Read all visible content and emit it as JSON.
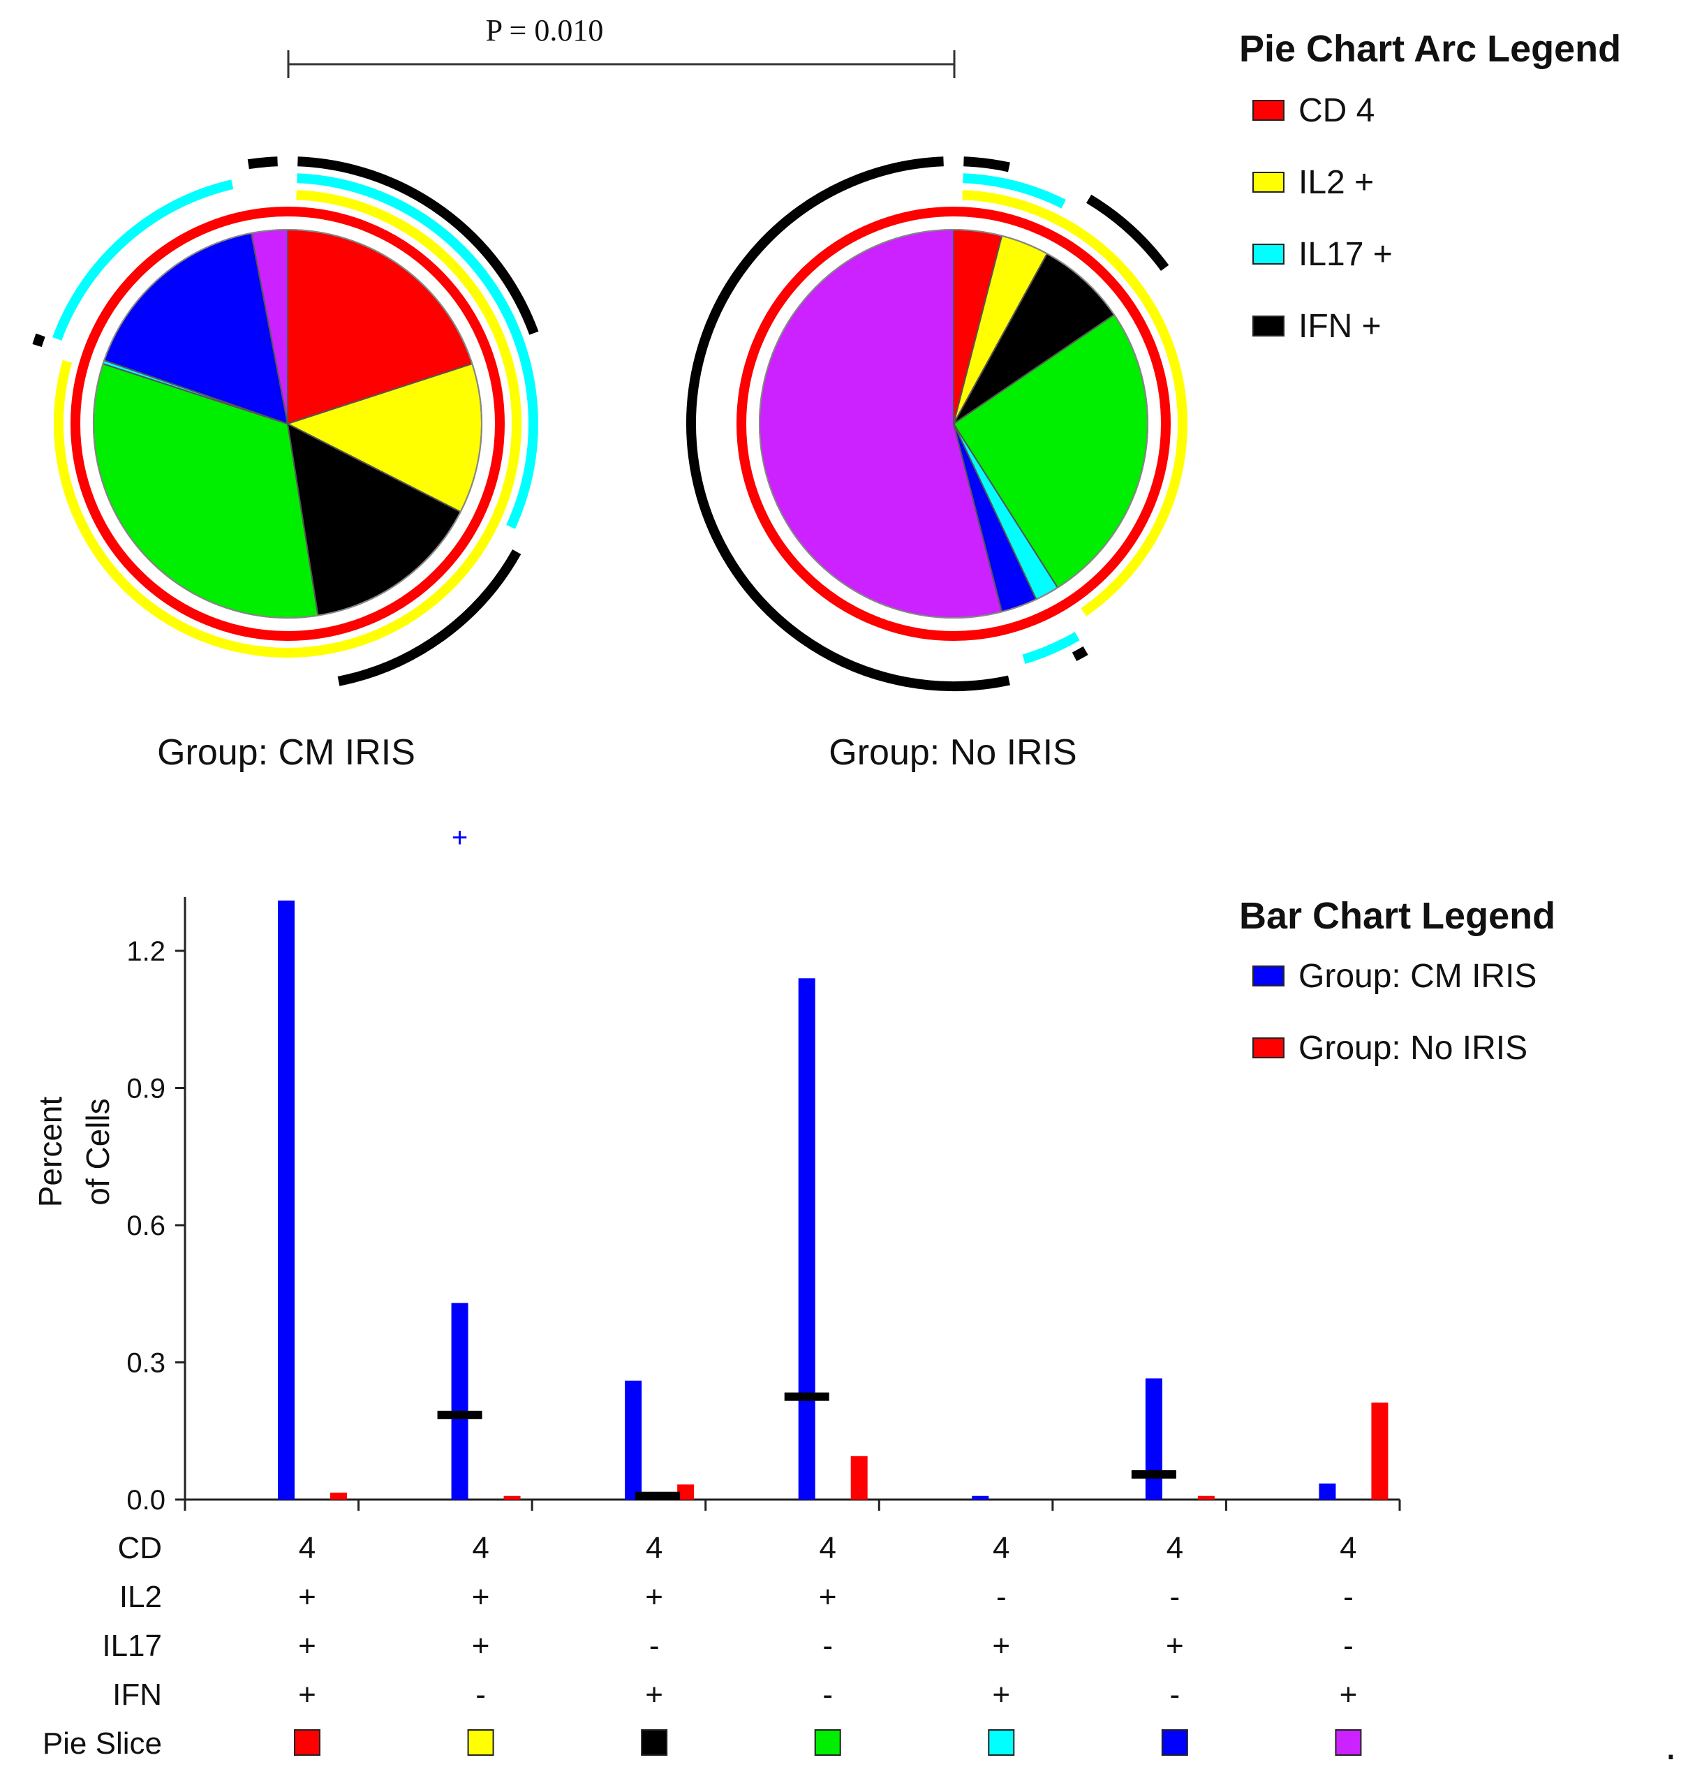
{
  "chart_data": [
    {
      "type": "pie",
      "id": "pie-cm-iris",
      "label": "Group: CM IRIS",
      "slices": [
        {
          "pattern_index": 0,
          "color": "#ff0000",
          "value": 20.0
        },
        {
          "pattern_index": 1,
          "color": "#ffff00",
          "value": 12.5
        },
        {
          "pattern_index": 2,
          "color": "#000000",
          "value": 15.0
        },
        {
          "pattern_index": 3,
          "color": "#00ee00",
          "value": 32.5
        },
        {
          "pattern_index": 4,
          "color": "#00ffff",
          "value": 0.3
        },
        {
          "pattern_index": 5,
          "color": "#0000ff",
          "value": 16.7
        },
        {
          "pattern_index": 6,
          "color": "#cc22ff",
          "value": 3.0
        }
      ]
    },
    {
      "type": "pie",
      "id": "pie-no-iris",
      "label": "Group: No IRIS",
      "slices": [
        {
          "pattern_index": 0,
          "color": "#ff0000",
          "value": 4.0
        },
        {
          "pattern_index": 1,
          "color": "#ffff00",
          "value": 4.0
        },
        {
          "pattern_index": 2,
          "color": "#000000",
          "value": 7.5
        },
        {
          "pattern_index": 3,
          "color": "#00ee00",
          "value": 25.5
        },
        {
          "pattern_index": 4,
          "color": "#00ffff",
          "value": 2.0
        },
        {
          "pattern_index": 5,
          "color": "#0000ff",
          "value": 3.0
        },
        {
          "pattern_index": 6,
          "color": "#cc22ff",
          "value": 54.0
        }
      ]
    },
    {
      "type": "bar",
      "id": "bar-percent-cells",
      "ylabel": [
        "Percent",
        "of Cells"
      ],
      "ylim": [
        0,
        1.3
      ],
      "yticks": [
        "0.0",
        "0.3",
        "0.6",
        "0.9",
        "1.2"
      ],
      "ytick_values": [
        0,
        0.3,
        0.6,
        0.9,
        1.2
      ],
      "series": [
        {
          "name": "Group: CM IRIS",
          "color": "#0000ff",
          "values": [
            1.31,
            0.43,
            0.26,
            1.14,
            0.008,
            0.265,
            0.035
          ]
        },
        {
          "name": "Group: No IRIS",
          "color": "#ff0000",
          "values": [
            0.015,
            0.008,
            0.033,
            0.095,
            0.0,
            0.008,
            0.212
          ]
        }
      ],
      "medians": [
        null,
        0.185,
        0.008,
        0.225,
        null,
        0.055,
        null
      ],
      "outliers": [
        {
          "category_index": 1,
          "series": "Group: CM IRIS",
          "symbol": "+"
        }
      ]
    }
  ],
  "pvalue": {
    "text": "P = 0.010"
  },
  "pie_arc_legend": {
    "title": "Pie Chart Arc Legend",
    "items": [
      {
        "label": "CD 4",
        "color": "#ff0000"
      },
      {
        "label": "IL2 +",
        "color": "#ffff00"
      },
      {
        "label": "IL17 +",
        "color": "#00ffff"
      },
      {
        "label": "IFN +",
        "color": "#000000"
      }
    ]
  },
  "bar_legend": {
    "title": "Bar Chart Legend",
    "items": [
      {
        "label": "Group: CM IRIS",
        "color": "#0000ff"
      },
      {
        "label": "Group: No IRIS",
        "color": "#ff0000"
      }
    ]
  },
  "category_table": {
    "row_labels": [
      "CD",
      "IL2",
      "IL17",
      "IFN",
      "Pie Slice"
    ],
    "rows": [
      [
        "4",
        "4",
        "4",
        "4",
        "4",
        "4",
        "4"
      ],
      [
        "+",
        "+",
        "+",
        "+",
        "-",
        "-",
        "-"
      ],
      [
        "+",
        "+",
        "-",
        "-",
        "+",
        "+",
        "-"
      ],
      [
        "+",
        "-",
        "+",
        "-",
        "+",
        "-",
        "+"
      ]
    ],
    "pie_slice_colors": [
      "#ff0000",
      "#ffff00",
      "#000000",
      "#00ee00",
      "#00ffff",
      "#0000ff",
      "#cc22ff"
    ]
  },
  "footer_mark": "."
}
